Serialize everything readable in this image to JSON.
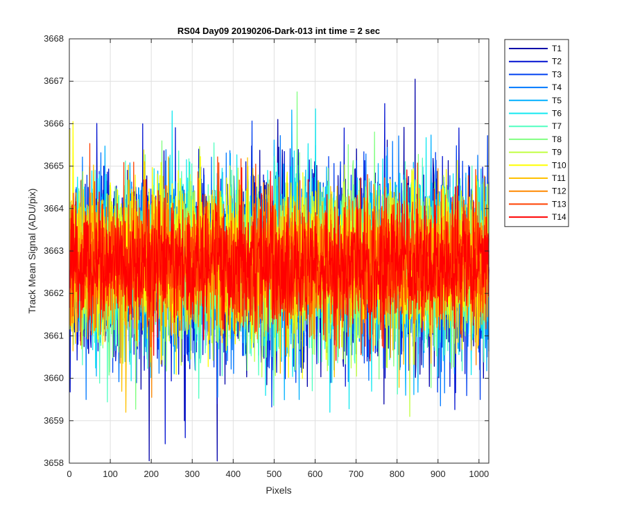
{
  "chart_data": {
    "type": "line",
    "title": "RS04 Day09 20190206-Dark-013 int time = 2 sec",
    "xlabel": "Pixels",
    "ylabel": "Track Mean Signal (ADU/pix)",
    "xlim": [
      0,
      1024
    ],
    "ylim": [
      3658,
      3668
    ],
    "x_ticks": [
      0,
      100,
      200,
      300,
      400,
      500,
      600,
      700,
      800,
      900,
      1000
    ],
    "y_ticks": [
      3658,
      3659,
      3660,
      3661,
      3662,
      3663,
      3664,
      3665,
      3666,
      3667,
      3668
    ],
    "grid": true,
    "legend_position": "outside-top-right",
    "x_points": 1024,
    "series": [
      {
        "name": "T1",
        "color": "#0000a8",
        "mean": 3662.7,
        "std": 1.15,
        "spikes": [
          [
            843,
            3667.05
          ],
          [
            508,
            3666.1
          ],
          [
            280,
            3659.0
          ],
          [
            1010,
            3660.0
          ]
        ]
      },
      {
        "name": "T2",
        "color": "#0010d0",
        "mean": 3662.7,
        "std": 1.1,
        "spikes": [
          [
            282,
            3658.6
          ],
          [
            950,
            3665.9
          ],
          [
            670,
            3665.9
          ]
        ]
      },
      {
        "name": "T3",
        "color": "#0040f0",
        "mean": 3662.7,
        "std": 1.05,
        "spikes": [
          [
            1002,
            3659.5
          ]
        ]
      },
      {
        "name": "T4",
        "color": "#0078ff",
        "mean": 3662.7,
        "std": 1.05,
        "spikes": [
          [
            40,
            3659.5
          ],
          [
            905,
            3659.35
          ]
        ]
      },
      {
        "name": "T5",
        "color": "#00b0ff",
        "mean": 3662.7,
        "std": 1.0,
        "spikes": [
          [
            560,
            3659.5
          ],
          [
            820,
            3659.6
          ]
        ]
      },
      {
        "name": "T6",
        "color": "#10e8f0",
        "mean": 3662.7,
        "std": 1.0,
        "spikes": [
          [
            250,
            3666.3
          ],
          [
            600,
            3666.35
          ],
          [
            635,
            3659.2
          ]
        ]
      },
      {
        "name": "T7",
        "color": "#50ffc0",
        "mean": 3662.7,
        "std": 0.95,
        "spikes": []
      },
      {
        "name": "T8",
        "color": "#80ff80",
        "mean": 3662.7,
        "std": 0.95,
        "spikes": [
          [
            555,
            3666.75
          ]
        ]
      },
      {
        "name": "T9",
        "color": "#c0ff40",
        "mean": 3662.7,
        "std": 0.9,
        "spikes": [
          [
            830,
            3659.1
          ]
        ]
      },
      {
        "name": "T10",
        "color": "#ffff00",
        "mean": 3662.9,
        "std": 0.9,
        "spikes": [
          [
            8,
            3666.05
          ]
        ]
      },
      {
        "name": "T11",
        "color": "#ffc000",
        "mean": 3662.7,
        "std": 0.85,
        "spikes": [
          [
            137,
            3659.2
          ]
        ]
      },
      {
        "name": "T12",
        "color": "#ff8800",
        "mean": 3662.7,
        "std": 0.8,
        "spikes": [
          [
            200,
            3659.55
          ]
        ]
      },
      {
        "name": "T13",
        "color": "#ff4000",
        "mean": 3662.7,
        "std": 0.75,
        "spikes": []
      },
      {
        "name": "T14",
        "color": "#ff0000",
        "mean": 3662.7,
        "std": 0.7,
        "spikes": []
      }
    ]
  }
}
